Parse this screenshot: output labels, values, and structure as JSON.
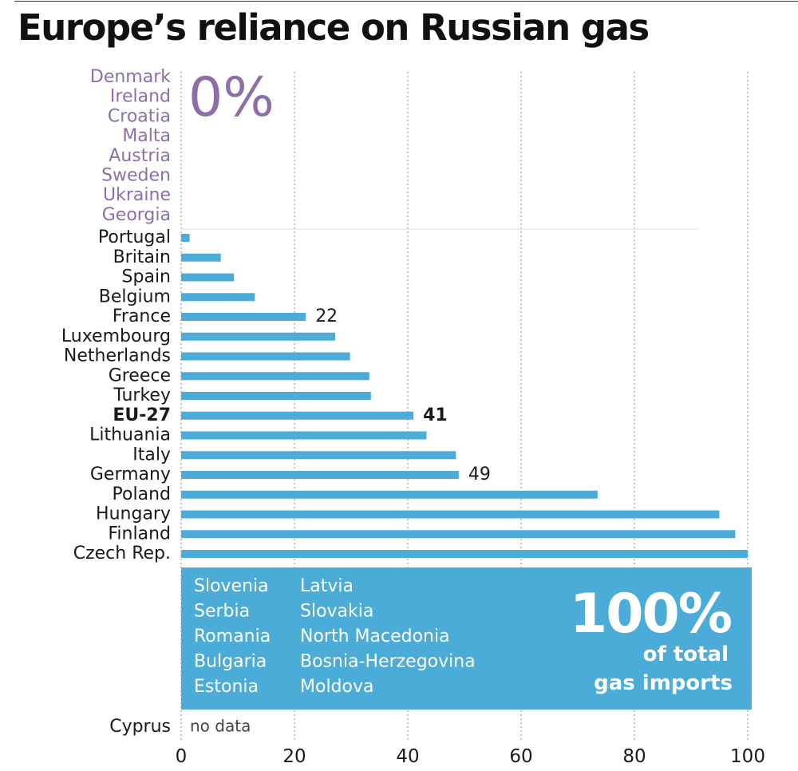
{
  "title": "Europe’s reliance on Russian gas",
  "chart_data": {
    "type": "bar",
    "orientation": "horizontal",
    "title": "Europe’s reliance on Russian gas",
    "xlabel": "",
    "ylabel": "",
    "xlim": [
      0,
      100
    ],
    "x_ticks": [
      "0",
      "20",
      "40",
      "60",
      "80",
      "100"
    ],
    "grid": "vertical dotted",
    "zero_group": {
      "label": "0%",
      "countries": [
        "Denmark",
        "Ireland",
        "Croatia",
        "Malta",
        "Austria",
        "Sweden",
        "Ukraine",
        "Georgia"
      ]
    },
    "categories": [
      "Portugal",
      "Britain",
      "Spain",
      "Belgium",
      "France",
      "Luxembourg",
      "Netherlands",
      "Greece",
      "Turkey",
      "EU-27",
      "Lithuania",
      "Italy",
      "Germany",
      "Poland",
      "Hungary",
      "Finland",
      "Czech Rep."
    ],
    "values": [
      1.5,
      7,
      9.3,
      13,
      22,
      27.2,
      29.8,
      33.2,
      33.5,
      41,
      43.3,
      48.5,
      49,
      73.5,
      95,
      97.8,
      100
    ],
    "bold_categories": [
      "EU-27"
    ],
    "data_labels": [
      {
        "category": "France",
        "text": "22"
      },
      {
        "category": "EU-27",
        "text": "41"
      },
      {
        "category": "Germany",
        "text": "49"
      }
    ],
    "full_group": {
      "big_label": "100%",
      "sub_label_1": "of total",
      "sub_label_2": "gas imports",
      "countries_col1": [
        "Slovenia",
        "Serbia",
        "Romania",
        "Bulgaria",
        "Estonia"
      ],
      "countries_col2": [
        "Latvia",
        "Slovakia",
        "North Macedonia",
        "Bosnia-Herzegovina",
        "Moldova"
      ]
    },
    "no_data": {
      "country": "Cyprus",
      "label": "no data"
    }
  },
  "colors": {
    "bar": "#4badd7",
    "box": "#4badd7",
    "zero_text": "#8c6fa8",
    "grid": "#888888"
  }
}
